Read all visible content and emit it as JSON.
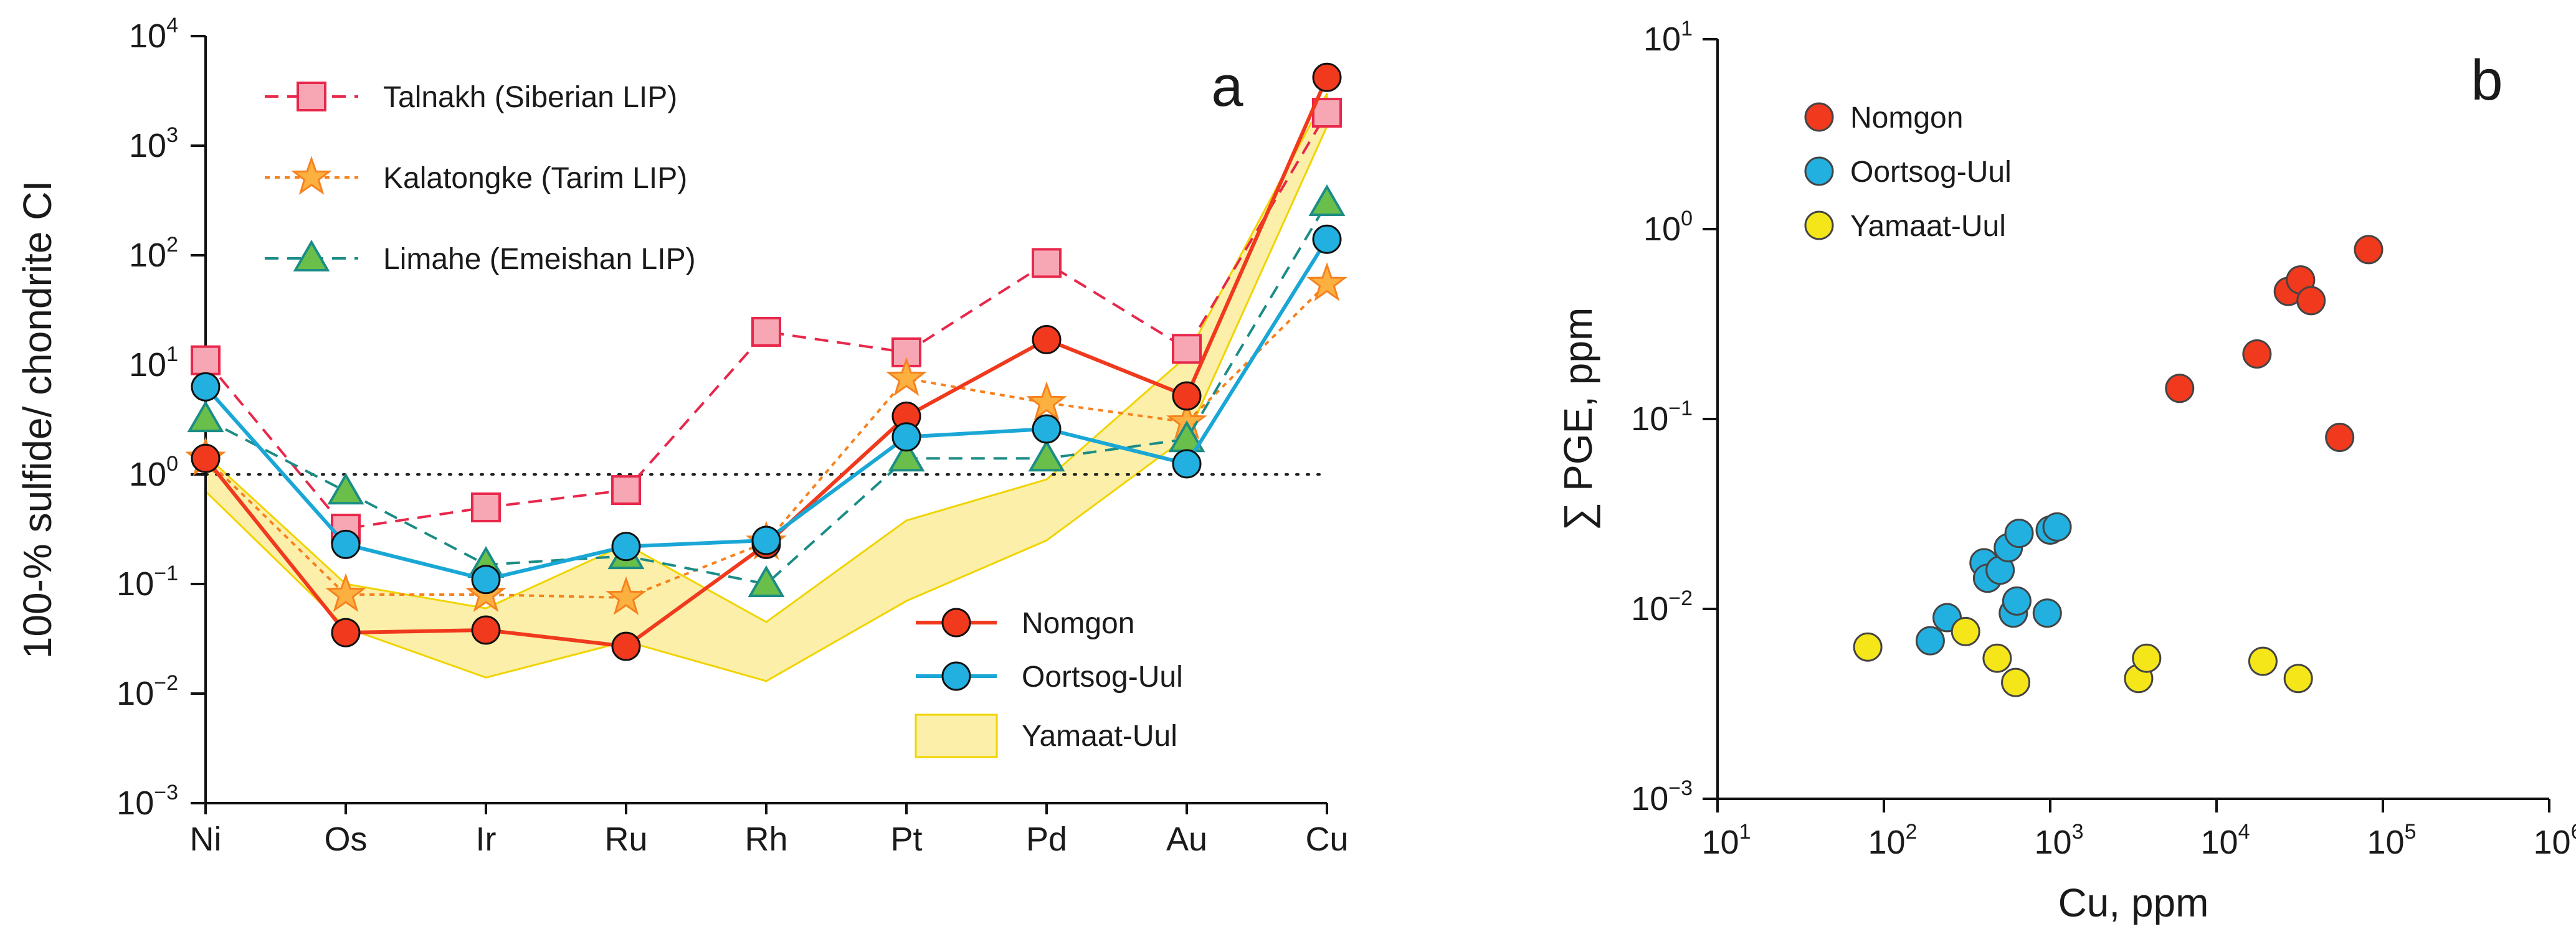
{
  "chart_data": [
    {
      "panel_label": "a",
      "type": "line",
      "yscale": "log",
      "ylim_exponents": [
        -3,
        4
      ],
      "ylabel": "100-% sulfide/ chondrite CI",
      "xlabel": "",
      "categories": [
        "Ni",
        "Os",
        "Ir",
        "Ru",
        "Rh",
        "Pt",
        "Pd",
        "Au",
        "Cu"
      ],
      "reference_line": 1,
      "series": [
        {
          "name": "Talnakh (Siberian LIP)",
          "marker": "square",
          "style": "dashed",
          "color": "#e8274b",
          "fill": "#f7a6b4",
          "values": [
            11,
            0.32,
            0.5,
            0.72,
            20,
            13,
            85,
            14,
            2000
          ]
        },
        {
          "name": "Kalatongke (Tarim LIP)",
          "marker": "star",
          "style": "dotted",
          "color": "#f5821f",
          "fill": "#fbb040",
          "values": [
            1.4,
            0.08,
            0.08,
            0.075,
            0.24,
            7.5,
            4.5,
            3.0,
            55
          ]
        },
        {
          "name": "Limahe (Emeishan LIP)",
          "marker": "triangle",
          "style": "dashed",
          "color": "#1b8c86",
          "fill": "#6abf4b",
          "values": [
            3.2,
            0.7,
            0.15,
            0.18,
            0.1,
            1.4,
            1.4,
            2.1,
            300
          ]
        },
        {
          "name": "Nomgon",
          "marker": "circle",
          "style": "solid",
          "color": "#f0391d",
          "fill": "#f0391d",
          "values": [
            1.4,
            0.036,
            0.038,
            0.027,
            0.23,
            3.4,
            17,
            5.2,
            4200
          ]
        },
        {
          "name": "Oortsog-Uul",
          "marker": "circle",
          "style": "solid",
          "color": "#1aa7d6",
          "fill": "#22b0e0",
          "values": [
            6.3,
            0.23,
            0.11,
            0.22,
            0.25,
            2.2,
            2.6,
            1.25,
            140
          ]
        }
      ],
      "band": {
        "name": "Yamaat-Uul",
        "upper": [
          1.5,
          0.1,
          0.06,
          0.23,
          0.045,
          0.38,
          0.9,
          12,
          3000
        ],
        "lower": [
          0.7,
          0.04,
          0.014,
          0.03,
          0.013,
          0.07,
          0.25,
          2.2,
          1500
        ]
      },
      "legend": {
        "position": "top-left and bottom-right"
      }
    },
    {
      "panel_label": "b",
      "type": "scatter",
      "xscale": "log",
      "yscale": "log",
      "xlim_exponents": [
        1,
        6
      ],
      "ylim_exponents": [
        -3,
        1
      ],
      "xlabel": "Cu, ppm",
      "ylabel": "∑ PGE, ppm",
      "series": [
        {
          "name": "Nomgon",
          "color": "#f0391d",
          "points": [
            [
              6000,
              0.145
            ],
            [
              17500,
              0.22
            ],
            [
              27000,
              0.47
            ],
            [
              32000,
              0.54
            ],
            [
              37000,
              0.42
            ],
            [
              55000,
              0.08
            ],
            [
              82000,
              0.78
            ]
          ]
        },
        {
          "name": "Oortsog-Uul",
          "color": "#22b0e0",
          "points": [
            [
              190,
              0.0068
            ],
            [
              240,
              0.009
            ],
            [
              400,
              0.0175
            ],
            [
              420,
              0.0145
            ],
            [
              500,
              0.016
            ],
            [
              560,
              0.021
            ],
            [
              600,
              0.0095
            ],
            [
              630,
              0.011
            ],
            [
              650,
              0.025
            ],
            [
              960,
              0.0095
            ],
            [
              1000,
              0.026
            ],
            [
              1100,
              0.027
            ]
          ]
        },
        {
          "name": "Yamaat-Uul",
          "color": "#f5e619",
          "points": [
            [
              80,
              0.0063
            ],
            [
              310,
              0.0076
            ],
            [
              480,
              0.0055
            ],
            [
              620,
              0.0041
            ],
            [
              3400,
              0.0043
            ],
            [
              3800,
              0.0055
            ],
            [
              19000,
              0.0053
            ],
            [
              31000,
              0.0043
            ]
          ]
        }
      ],
      "legend": {
        "position": "top-left"
      }
    }
  ]
}
